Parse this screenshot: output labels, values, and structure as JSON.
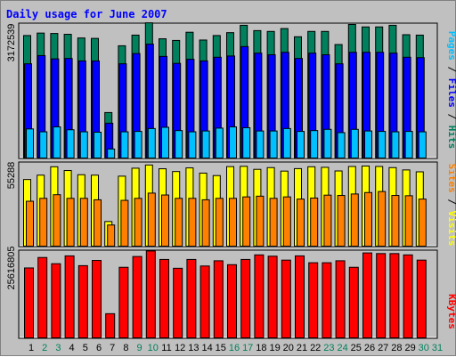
{
  "title": "Daily usage for June 2007",
  "colors": {
    "background": "#c0c0c0",
    "hits": "#00805c",
    "files": "#0000ff",
    "pages": "#00c0ff",
    "visits": "#ffff00",
    "sites": "#ff8000",
    "kbytes": "#ff0000",
    "weekend_day": "#00805c",
    "weekday": "#000000"
  },
  "chart_data": [
    {
      "type": "bar",
      "panel": "hits_files_pages",
      "categories": [
        "1",
        "2",
        "3",
        "4",
        "5",
        "6",
        "7",
        "8",
        "9",
        "10",
        "11",
        "12",
        "13",
        "14",
        "15",
        "16",
        "17",
        "18",
        "19",
        "20",
        "21",
        "22",
        "23",
        "24",
        "25",
        "26",
        "27",
        "28",
        "29",
        "30",
        "31"
      ],
      "weekend_days": [
        "2",
        "3",
        "9",
        "10",
        "16",
        "17",
        "23",
        "24",
        "30",
        "31"
      ],
      "y_max_label": "3172539",
      "ymax": 3172539,
      "series": [
        {
          "name": "Hits",
          "values": [
            2990000,
            3050000,
            3040000,
            3020000,
            2930000,
            2920000,
            1110000,
            2740000,
            3000000,
            3300000,
            2910000,
            2870000,
            3070000,
            2880000,
            2990000,
            3060000,
            3240000,
            3110000,
            3090000,
            3160000,
            2960000,
            3090000,
            3090000,
            2770000,
            3260000,
            3200000,
            3200000,
            3240000,
            3010000,
            3000000,
            0
          ]
        },
        {
          "name": "Files",
          "values": [
            2300000,
            2500000,
            2420000,
            2430000,
            2370000,
            2370000,
            850000,
            2300000,
            2550000,
            2780000,
            2480000,
            2310000,
            2410000,
            2370000,
            2460000,
            2490000,
            2720000,
            2560000,
            2520000,
            2580000,
            2430000,
            2560000,
            2520000,
            2300000,
            2580000,
            2580000,
            2580000,
            2560000,
            2460000,
            2450000,
            0
          ]
        },
        {
          "name": "Pages",
          "values": [
            710000,
            640000,
            760000,
            690000,
            640000,
            630000,
            220000,
            640000,
            650000,
            720000,
            750000,
            670000,
            640000,
            660000,
            730000,
            760000,
            740000,
            660000,
            660000,
            720000,
            650000,
            670000,
            700000,
            620000,
            700000,
            660000,
            650000,
            640000,
            650000,
            640000,
            0
          ]
        }
      ]
    },
    {
      "type": "bar",
      "panel": "visits_sites",
      "categories": [
        "1",
        "2",
        "3",
        "4",
        "5",
        "6",
        "7",
        "8",
        "9",
        "10",
        "11",
        "12",
        "13",
        "14",
        "15",
        "16",
        "17",
        "18",
        "19",
        "20",
        "21",
        "22",
        "23",
        "24",
        "25",
        "26",
        "27",
        "28",
        "29",
        "30",
        "31"
      ],
      "y_max_label": "55288",
      "ymax": 55288,
      "series": [
        {
          "name": "Visits",
          "values": [
            46000,
            49000,
            54800,
            52200,
            49300,
            49000,
            17000,
            48300,
            53800,
            56000,
            53400,
            51500,
            54000,
            50400,
            48700,
            54900,
            55100,
            53000,
            54200,
            51800,
            53500,
            54800,
            54400,
            51900,
            55000,
            55300,
            55000,
            54200,
            52600,
            51300,
            0
          ]
        },
        {
          "name": "Sites",
          "values": [
            31000,
            33000,
            35500,
            33000,
            33000,
            32000,
            14600,
            31600,
            33000,
            36600,
            35300,
            33000,
            33000,
            32000,
            33000,
            33000,
            34000,
            34500,
            33000,
            34000,
            32500,
            33200,
            35200,
            35000,
            36000,
            37000,
            37700,
            35000,
            34800,
            32500,
            0
          ]
        }
      ]
    },
    {
      "type": "bar",
      "panel": "kbytes",
      "categories": [
        "1",
        "2",
        "3",
        "4",
        "5",
        "6",
        "7",
        "8",
        "9",
        "10",
        "11",
        "12",
        "13",
        "14",
        "15",
        "16",
        "17",
        "18",
        "19",
        "20",
        "21",
        "22",
        "23",
        "24",
        "25",
        "26",
        "27",
        "28",
        "29",
        "30",
        "31"
      ],
      "y_max_label": "25616805",
      "ymax": 25616805,
      "series": [
        {
          "name": "KBytes",
          "values": [
            21400000,
            24600000,
            22700000,
            25100000,
            22100000,
            23700000,
            7400000,
            21600000,
            24900000,
            26600000,
            24000000,
            21300000,
            24000000,
            22000000,
            23600000,
            22400000,
            24000000,
            25400000,
            25000000,
            23800000,
            25100000,
            23000000,
            23000000,
            23600000,
            21600000,
            26000000,
            25800000,
            25800000,
            25400000,
            23800000,
            0
          ]
        }
      ]
    }
  ],
  "legends": {
    "panel1": [
      {
        "text": "Pages",
        "color": "#00c0ff"
      },
      {
        "text": " / ",
        "color": "#000000"
      },
      {
        "text": "Files",
        "color": "#0000ff"
      },
      {
        "text": " / ",
        "color": "#000000"
      },
      {
        "text": "Hits",
        "color": "#00805c"
      }
    ],
    "panel2": [
      {
        "text": "Sites",
        "color": "#ff8000"
      },
      {
        "text": " / ",
        "color": "#000000"
      },
      {
        "text": "Visits",
        "color": "#ffff00"
      }
    ],
    "panel3": [
      {
        "text": "KBytes",
        "color": "#ff0000"
      }
    ]
  }
}
